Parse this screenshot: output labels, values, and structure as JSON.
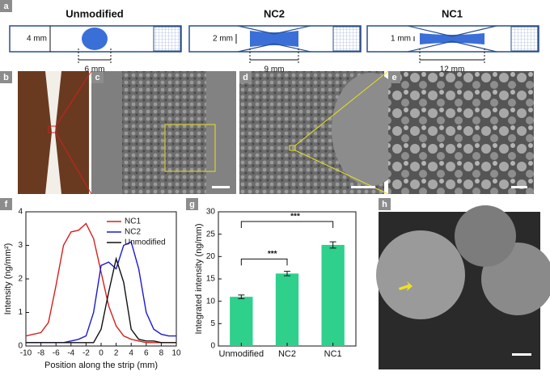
{
  "panel_labels": [
    "a",
    "b",
    "c",
    "d",
    "e",
    "f",
    "g",
    "h"
  ],
  "schematic": {
    "strips": [
      {
        "title": "Unmodified",
        "width_label": "4 mm",
        "length_label": "6 mm"
      },
      {
        "title": "NC2",
        "width_label": "2 mm",
        "length_label": "9 mm"
      },
      {
        "title": "NC1",
        "width_label": "1 mm",
        "length_label": "12 mm"
      }
    ]
  },
  "chart_data": [
    {
      "type": "line",
      "xlabel": "Position along the strip (mm)",
      "ylabel": "Intensity (ng/mm²)",
      "x": [
        -10,
        -9,
        -8,
        -7,
        -6,
        -5,
        -4,
        -3,
        -2,
        -1,
        0,
        1,
        2,
        3,
        4,
        5,
        6,
        7,
        8,
        9,
        10
      ],
      "series": [
        {
          "name": "NC1",
          "color": "#d62020",
          "values": [
            0.3,
            0.35,
            0.4,
            0.7,
            1.8,
            3.0,
            3.4,
            3.45,
            3.65,
            3.2,
            2.2,
            1.2,
            0.6,
            0.3,
            0.2,
            0.15,
            0.1,
            0.1,
            0.1,
            0.1,
            0.1
          ]
        },
        {
          "name": "NC2",
          "color": "#1a1ad0",
          "values": [
            0.1,
            0.1,
            0.1,
            0.1,
            0.1,
            0.1,
            0.15,
            0.2,
            0.3,
            1.0,
            2.4,
            2.5,
            2.3,
            3.0,
            3.1,
            2.3,
            1.0,
            0.5,
            0.35,
            0.3,
            0.3
          ]
        },
        {
          "name": "Unmodified",
          "color": "#111111",
          "values": [
            0.1,
            0.1,
            0.1,
            0.1,
            0.1,
            0.1,
            0.1,
            0.1,
            0.1,
            0.1,
            0.5,
            1.6,
            2.6,
            1.9,
            0.5,
            0.2,
            0.15,
            0.15,
            0.1,
            0.1,
            0.1
          ]
        }
      ],
      "xlim": [
        -10,
        10
      ],
      "ylim": [
        0,
        4
      ],
      "xticks": [
        -10,
        -8,
        -6,
        -4,
        -2,
        0,
        2,
        4,
        6,
        8,
        10
      ],
      "yticks": [
        0,
        1,
        2,
        3,
        4
      ],
      "legend": "upper right"
    },
    {
      "type": "bar",
      "ylabel": "Integrated intensity (ng/mm)",
      "categories": [
        "Unmodified",
        "NC2",
        "NC1"
      ],
      "values": [
        11,
        16.2,
        22.6
      ],
      "errors": [
        0.4,
        0.5,
        0.7
      ],
      "color": "#2ed08c",
      "ylim": [
        0,
        30
      ],
      "yticks": [
        0,
        5,
        10,
        15,
        20,
        25,
        30
      ],
      "annotations": [
        "***",
        "***"
      ]
    }
  ]
}
